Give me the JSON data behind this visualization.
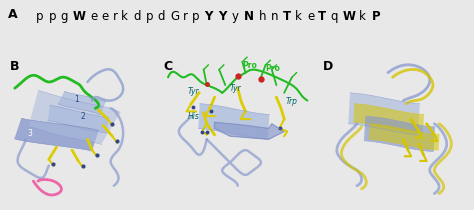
{
  "panel_labels": [
    "A",
    "B",
    "C",
    "D"
  ],
  "sequence_parts": [
    {
      "text": "ppg",
      "bold": false
    },
    {
      "text": "W",
      "bold": true
    },
    {
      "text": "eerkdpd",
      "bold": false
    },
    {
      "text": "Grp",
      "bold": false
    },
    {
      "text": "YY",
      "bold": true
    },
    {
      "text": "y",
      "bold": false
    },
    {
      "text": "N",
      "bold": true
    },
    {
      "text": "hn",
      "bold": false
    },
    {
      "text": "T",
      "bold": true
    },
    {
      "text": "ke",
      "bold": false
    },
    {
      "text": "T",
      "bold": true
    },
    {
      "text": "q",
      "bold": false
    },
    {
      "text": "W",
      "bold": true
    },
    {
      "text": "k",
      "bold": false
    },
    {
      "text": "P",
      "bold": true
    }
  ],
  "colors": {
    "ribbon_blue": "#8899cc",
    "ribbon_blue2": "#7788bb",
    "ribbon_blue3": "#aabbdd",
    "loop_green": "#22bb22",
    "yellow": "#ddcc00",
    "yellow2": "#ccbb00",
    "pink": "#ee66aa",
    "red": "#cc2222",
    "dark_blue": "#334488",
    "label_teal": "#006666",
    "bg": "#e8e8e8",
    "panel_bg": "#e8e8e8"
  },
  "figsize": [
    4.74,
    2.1
  ],
  "dpi": 100,
  "font_size_label": 9,
  "font_size_seq": 8.5
}
